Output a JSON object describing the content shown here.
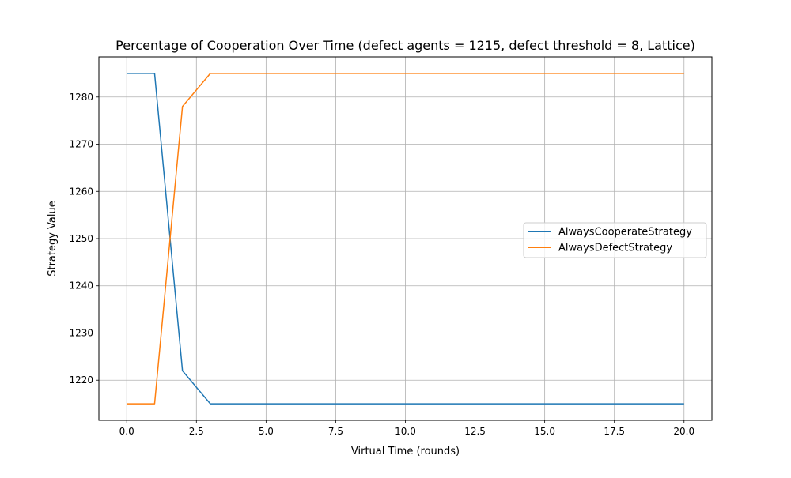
{
  "chart_data": {
    "type": "line",
    "title": "Percentage of Cooperation Over Time (defect agents = 1215, defect threshold = 8, Lattice)",
    "xlabel": "Virtual Time (rounds)",
    "ylabel": "Strategy Value",
    "xlim": [
      -1,
      21
    ],
    "ylim": [
      1211.5,
      1288.5
    ],
    "xticks": [
      0,
      2.5,
      5,
      7.5,
      10,
      12.5,
      15,
      17.5,
      20
    ],
    "xtick_labels": [
      "0.0",
      "2.5",
      "5.0",
      "7.5",
      "10.0",
      "12.5",
      "15.0",
      "17.5",
      "20.0"
    ],
    "yticks": [
      1220,
      1230,
      1240,
      1250,
      1260,
      1270,
      1280
    ],
    "ytick_labels": [
      "1220",
      "1230",
      "1240",
      "1250",
      "1260",
      "1270",
      "1280"
    ],
    "grid": true,
    "legend_position": "center-right",
    "x": [
      0,
      1,
      2,
      3,
      4,
      5,
      6,
      7,
      8,
      9,
      10,
      11,
      12,
      13,
      14,
      15,
      16,
      17,
      18,
      19,
      20
    ],
    "series": [
      {
        "name": "AlwaysCooperateStrategy",
        "color": "#1f77b4",
        "values": [
          1285,
          1285,
          1222,
          1215,
          1215,
          1215,
          1215,
          1215,
          1215,
          1215,
          1215,
          1215,
          1215,
          1215,
          1215,
          1215,
          1215,
          1215,
          1215,
          1215,
          1215
        ]
      },
      {
        "name": "AlwaysDefectStrategy",
        "color": "#ff7f0e",
        "values": [
          1215,
          1215,
          1278,
          1285,
          1285,
          1285,
          1285,
          1285,
          1285,
          1285,
          1285,
          1285,
          1285,
          1285,
          1285,
          1285,
          1285,
          1285,
          1285,
          1285,
          1285
        ]
      }
    ]
  }
}
